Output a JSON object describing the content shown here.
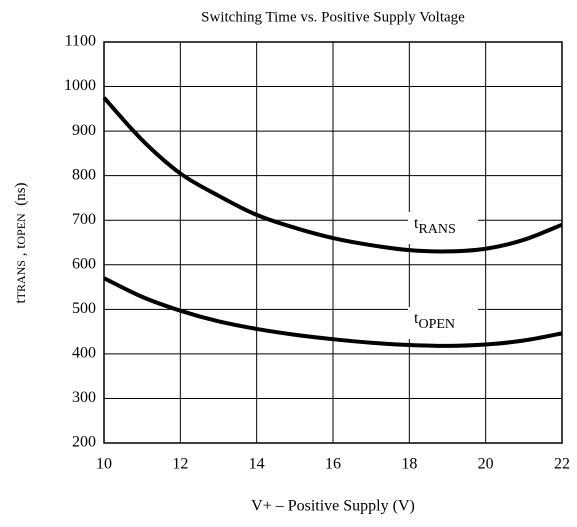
{
  "chart_data": {
    "type": "line",
    "title": "Switching Time vs. Positive Supply Voltage",
    "x_label": "V+ – Positive Supply (V)",
    "y_label": [
      {
        "text": "t",
        "sub": "TRANS"
      },
      {
        "text": " , t",
        "sub": "OPEN"
      },
      {
        "text": "  (ns)"
      }
    ],
    "x": [
      10,
      11,
      12,
      13,
      14,
      15,
      16,
      17,
      18,
      19,
      20,
      21,
      22
    ],
    "series": [
      {
        "color": "#000000",
        "values": [
          975,
          880,
          805,
          755,
          712,
          683,
          660,
          644,
          633,
          630,
          636,
          656,
          690
        ]
      },
      {
        "color": "#000000",
        "values": [
          570,
          528,
          497,
          473,
          456,
          443,
          433,
          425,
          420,
          418,
          421,
          430,
          446
        ]
      }
    ],
    "annotations": [
      {
        "text": "t",
        "sub": "RANS"
      },
      {
        "text": "t",
        "sub": "OPEN"
      }
    ],
    "xlim": [
      10,
      22
    ],
    "xticks": [
      10,
      12,
      14,
      16,
      18,
      20,
      22
    ],
    "ylim": [
      200,
      1100
    ],
    "yticks": [
      200,
      300,
      400,
      500,
      600,
      700,
      800,
      900,
      1000,
      1100
    ],
    "grid": true
  }
}
